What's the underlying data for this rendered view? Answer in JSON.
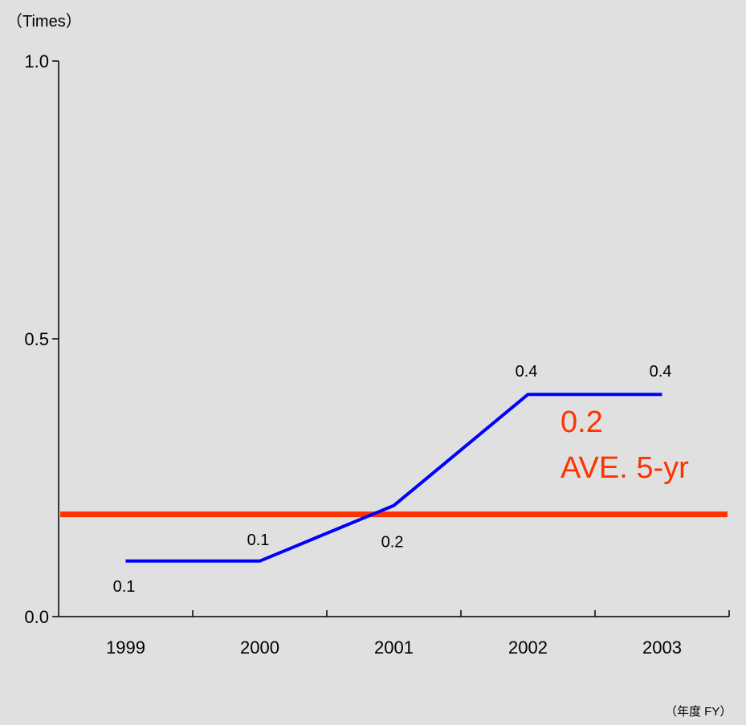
{
  "colors": {
    "background": "#e0e0e0",
    "series": "#0000ff",
    "average": "#ff3300",
    "axis": "#000000"
  },
  "chart_data": {
    "type": "line",
    "title": "",
    "ylabel": "（Times）",
    "xlabel": "（年度 FY）",
    "ylim": [
      0.0,
      1.0
    ],
    "yticks": [
      "0.0",
      "0.5",
      "1.0"
    ],
    "categories": [
      "1999",
      "2000",
      "2001",
      "2002",
      "2003"
    ],
    "series": [
      {
        "values": [
          0.1,
          0.1,
          0.2,
          0.4,
          0.4
        ],
        "data_labels": [
          "0.1",
          "0.1",
          "0.2",
          "0.4",
          "0.4"
        ]
      }
    ],
    "average_line": {
      "value": 0.2,
      "label_value": "0.2",
      "label_text": "AVE. 5-yr"
    },
    "grid": false,
    "legend": "none"
  }
}
